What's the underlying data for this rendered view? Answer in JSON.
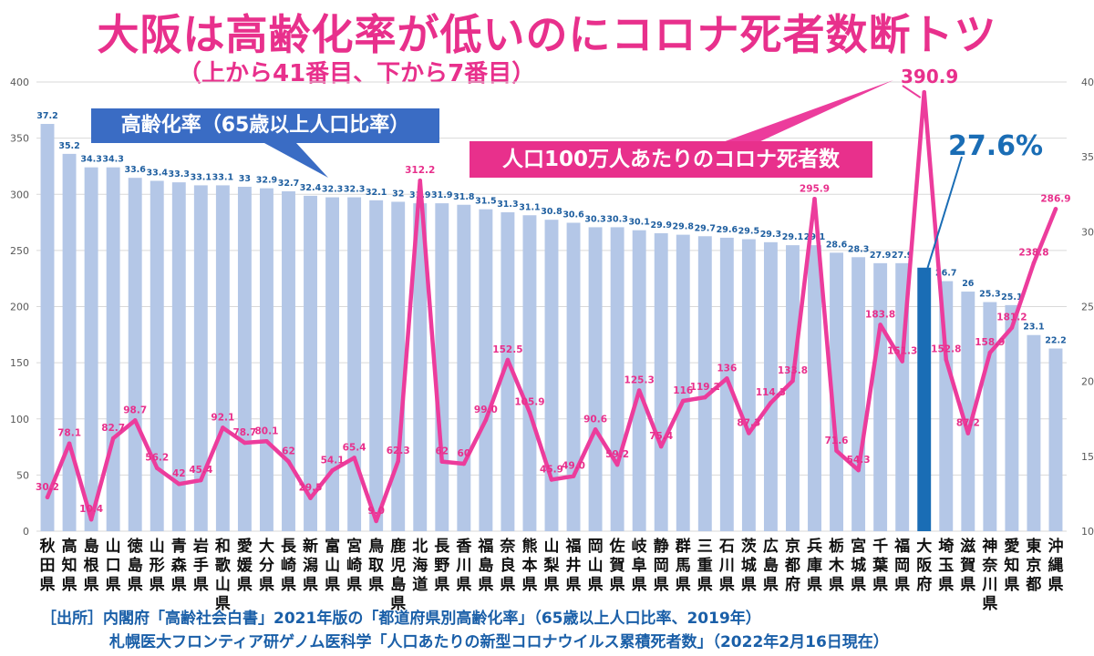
{
  "title": "大阪は高齢化率が低いのにコロナ死者数断トツ",
  "subtitle": "（上から41番目、下から7番目）",
  "annotations": {
    "rate_series_label": "高齢化率（65歳以上人口比率）",
    "death_series_label": "人口100万人あたりのコロナ死者数",
    "osaka_rate": "27.6%",
    "osaka_death": "390.9"
  },
  "source_line1": "［出所］内閣府「高齢社会白書」2021年版の「都道府県別高齢化率」（65歳以上人口比率、2019年）",
  "source_line2": "札幌医大フロンティア研ゲノム医科学「人口あたりの新型コロナウイルス累積死者数」（2022年2月16日現在）",
  "colors": {
    "bar": "#b4c7e7",
    "highlight_bar": "#1a6db5",
    "line": "#ec3c9c",
    "rate_label": "#1f5fa0",
    "death_label": "#e8308c"
  },
  "chart_data": {
    "type": "bar+line",
    "categories": [
      "秋田県",
      "高知県",
      "島根県",
      "山口県",
      "徳島県",
      "山形県",
      "青森県",
      "岩手県",
      "和歌山県",
      "愛媛県",
      "大分県",
      "長崎県",
      "新潟県",
      "富山県",
      "宮崎県",
      "鳥取県",
      "鹿児島県",
      "北海道",
      "長野県",
      "香川県",
      "福島県",
      "奈良県",
      "熊本県",
      "山梨県",
      "福井県",
      "岡山県",
      "佐賀県",
      "岐阜県",
      "静岡県",
      "群馬県",
      "三重県",
      "石川県",
      "茨城県",
      "広島県",
      "京都府",
      "兵庫県",
      "栃木県",
      "宮城県",
      "千葉県",
      "福岡県",
      "大阪府",
      "埼玉県",
      "滋賀県",
      "神奈川県",
      "愛知県",
      "東京都",
      "沖縄県"
    ],
    "highlight": "大阪府",
    "left_axis": {
      "ylim": [
        0,
        400
      ],
      "ticks": [
        "0",
        "50",
        "100",
        "150",
        "200",
        "250",
        "300",
        "350",
        "400"
      ]
    },
    "right_axis": {
      "ylim": [
        10,
        40
      ],
      "ticks": [
        "10",
        "15",
        "20",
        "25",
        "30",
        "35",
        "40"
      ]
    },
    "series": [
      {
        "axis": "right",
        "kind": "bar",
        "values": [
          37.2,
          35.2,
          34.3,
          34.3,
          33.6,
          33.4,
          33.3,
          33.1,
          33.1,
          33,
          32.9,
          32.7,
          32.4,
          32.3,
          32.3,
          32.1,
          32,
          31.9,
          31.9,
          31.8,
          31.5,
          31.3,
          31.1,
          30.8,
          30.6,
          30.3,
          30.3,
          30.1,
          29.9,
          29.8,
          29.7,
          29.6,
          29.5,
          29.3,
          29.1,
          29.1,
          28.6,
          28.3,
          27.9,
          27.9,
          27.6,
          26.7,
          26,
          25.3,
          25.1,
          23.1,
          22.2
        ],
        "labels": [
          "37.2",
          "35.2",
          "34.3",
          "34.3",
          "33.6",
          "33.4",
          "33.3",
          "33.1",
          "33.1",
          "33",
          "32.9",
          "32.7",
          "32.4",
          "32.3",
          "32.3",
          "32.1",
          "32",
          "31.9",
          "31.9",
          "31.8",
          "31.5",
          "31.3",
          "31.1",
          "30.8",
          "30.6",
          "30.3",
          "30.3",
          "30.1",
          "29.9",
          "29.8",
          "29.7",
          "29.6",
          "29.5",
          "29.3",
          "29.1",
          "29.1",
          "28.6",
          "28.3",
          "27.9",
          "27.9",
          "",
          "26.7",
          "26",
          "25.3",
          "25.1",
          "23.1",
          "22.2"
        ]
      },
      {
        "axis": "left",
        "kind": "line",
        "values": [
          30.2,
          78.1,
          10.4,
          82.7,
          98.7,
          56.2,
          42,
          45.4,
          92.1,
          78.7,
          80.1,
          62,
          29.5,
          54.1,
          65.4,
          9.0,
          62.3,
          312.2,
          62,
          60,
          99.0,
          152.5,
          105.9,
          45.9,
          49.0,
          90.6,
          59.2,
          125.3,
          75.4,
          116,
          119.2,
          136,
          87.3,
          114.3,
          133.8,
          295.9,
          71.6,
          54.3,
          183.8,
          151.3,
          390.9,
          152.8,
          87.2,
          158.9,
          181.2,
          238.8,
          286.9
        ],
        "labels": [
          "30.2",
          "78.1",
          "10.4",
          "82.7",
          "98.7",
          "56.2",
          "42",
          "45.4",
          "92.1",
          "78.7",
          "80.1",
          "62",
          "29.5",
          "54.1",
          "65.4",
          "9.0",
          "62.3",
          "312.2",
          "62",
          "60",
          "99.0",
          "152.5",
          "105.9",
          "45.9",
          "49.0",
          "90.6",
          "59.2",
          "125.3",
          "75.4",
          "116",
          "119.2",
          "136",
          "87.3",
          "114.3",
          "133.8",
          "295.9",
          "71.6",
          "54.3",
          "183.8",
          "151.3",
          "",
          "152.8",
          "87.2",
          "158.9",
          "181.2",
          "238.8",
          "286.9"
        ]
      }
    ]
  }
}
